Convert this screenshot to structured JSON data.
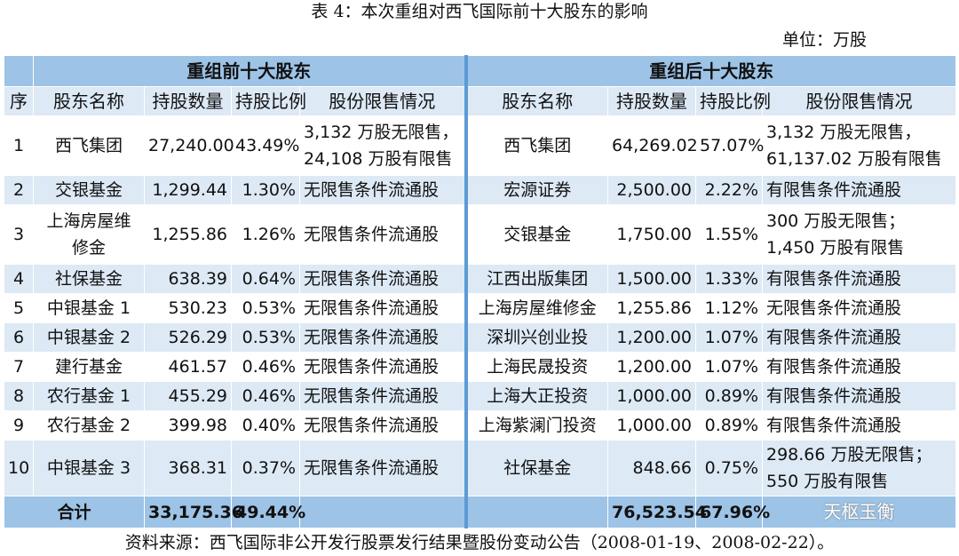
{
  "title": "表 4：本次重组对西飞国际前十大股东的影响",
  "unit": "单位：万股",
  "table": {
    "group_headers": [
      "重组前十大股东",
      "重组后十大股东"
    ],
    "columns": [
      "序",
      "股东名称",
      "持股数量",
      "持股比例",
      "股份限售情况",
      "股东名称",
      "持股数量",
      "持股比例",
      "股份限售情况"
    ],
    "rows": [
      [
        "1",
        "西飞集团",
        "27,240.00",
        "43.49%",
        "3,132 万股无限售，\n24,108 万股有限售",
        "西飞集团",
        "64,269.02",
        "57.07%",
        "3,132 万股无限售，\n61,137.02 万股有限售"
      ],
      [
        "2",
        "交银基金",
        "1,299.44",
        "1.30%",
        "无限售条件流通股",
        "宏源证券",
        "2,500.00",
        "2.22%",
        "有限售条件流通股"
      ],
      [
        "3",
        "上海房屋维修金",
        "1,255.86",
        "1.26%",
        "无限售条件流通股",
        "交银基金",
        "1,750.00",
        "1.55%",
        "300 万股无限售；\n1,450 万股有限售"
      ],
      [
        "4",
        "社保基金",
        "638.39",
        "0.64%",
        "无限售条件流通股",
        "江西出版集团",
        "1,500.00",
        "1.33%",
        "有限售条件流通股"
      ],
      [
        "5",
        "中银基金 1",
        "530.23",
        "0.53%",
        "无限售条件流通股",
        "上海房屋维修金",
        "1,255.86",
        "1.12%",
        "无限售条件流通股"
      ],
      [
        "6",
        "中银基金 2",
        "526.29",
        "0.53%",
        "无限售条件流通股",
        "深圳兴创业投",
        "1,200.00",
        "1.07%",
        "有限售条件流通股"
      ],
      [
        "7",
        "建行基金",
        "461.57",
        "0.46%",
        "无限售条件流通股",
        "上海民晟投资",
        "1,200.00",
        "1.07%",
        "有限售条件流通股"
      ],
      [
        "8",
        "农行基金 1",
        "455.29",
        "0.46%",
        "无限售条件流通股",
        "上海大正投资",
        "1,000.00",
        "0.89%",
        "有限售条件流通股"
      ],
      [
        "9",
        "农行基金 2",
        "399.98",
        "0.40%",
        "无限售条件流通股",
        "上海紫澜门投资",
        "1,000.00",
        "0.89%",
        "有限售条件流通股"
      ],
      [
        "10",
        "中银基金 3",
        "368.31",
        "0.37%",
        "无限售条件流通股",
        "社保基金",
        "848.66",
        "0.75%",
        "298.66 万股无限售；\n550 万股有限售"
      ]
    ],
    "total": {
      "label": "合计",
      "before": [
        "33,175.36",
        "49.44%"
      ],
      "after": [
        "76,523.54",
        "67.96%"
      ]
    }
  },
  "watermark": "天枢玉衡",
  "source": "资料来源：西飞国际非公开发行股票发行结果暨股份变动公告（2008-01-19、2008-02-22）。"
}
